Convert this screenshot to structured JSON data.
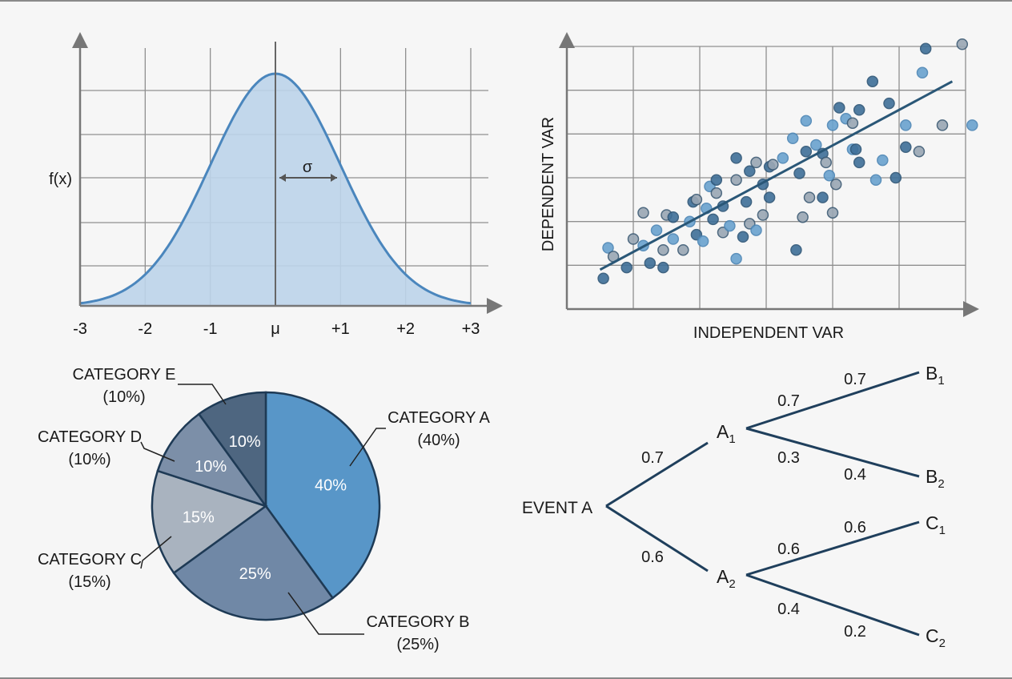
{
  "colors": {
    "grid": "#8f8f8f",
    "axis": "#777777",
    "normal_fill": "#bcd4ea",
    "normal_line": "#4a86bd",
    "trend": "#2a5777",
    "tree": "#1f3f5c",
    "pie_a": "#5896c8",
    "pie_b": "#7088a6",
    "pie_c": "#a9b3bf",
    "pie_d": "#7c8fa8",
    "pie_e": "#4e6680",
    "pie_edge": "#1e3a55"
  },
  "chart_data": [
    {
      "type": "area",
      "name": "normal-distribution",
      "ylabel": "f(x)",
      "xlabel": "",
      "x_ticks": [
        "-3",
        "-2",
        "-1",
        "μ",
        "+1",
        "+2",
        "+3"
      ],
      "xlim": [
        -3,
        3
      ],
      "annotation": "σ",
      "curve": "standard normal density",
      "grid": true
    },
    {
      "type": "scatter",
      "xlabel": "INDEPENDENT VAR",
      "ylabel": "DEPENDENT VAR",
      "xlim": [
        0,
        6
      ],
      "ylim": [
        0,
        6
      ],
      "grid": true,
      "trendline": [
        [
          0.5,
          0.9
        ],
        [
          5.8,
          5.2
        ]
      ],
      "points": [
        [
          0.55,
          0.7,
          0
        ],
        [
          0.62,
          1.4,
          1
        ],
        [
          0.7,
          1.2,
          2
        ],
        [
          0.9,
          0.95,
          0
        ],
        [
          1.0,
          1.6,
          2
        ],
        [
          1.15,
          1.45,
          1
        ],
        [
          1.25,
          1.05,
          0
        ],
        [
          1.15,
          2.2,
          2
        ],
        [
          1.35,
          1.8,
          1
        ],
        [
          1.45,
          0.95,
          0
        ],
        [
          1.45,
          1.35,
          2
        ],
        [
          1.6,
          1.6,
          1
        ],
        [
          1.5,
          2.15,
          2
        ],
        [
          1.6,
          2.1,
          0
        ],
        [
          1.75,
          1.35,
          2
        ],
        [
          1.85,
          2.0,
          1
        ],
        [
          1.9,
          2.45,
          0
        ],
        [
          1.95,
          2.5,
          2
        ],
        [
          1.95,
          1.7,
          0
        ],
        [
          2.05,
          1.55,
          1
        ],
        [
          2.1,
          2.3,
          1
        ],
        [
          2.2,
          2.05,
          0
        ],
        [
          2.15,
          2.8,
          1
        ],
        [
          2.25,
          2.65,
          2
        ],
        [
          2.25,
          2.95,
          0
        ],
        [
          2.35,
          2.35,
          0
        ],
        [
          2.35,
          1.75,
          2
        ],
        [
          2.45,
          1.9,
          1
        ],
        [
          2.55,
          1.15,
          1
        ],
        [
          2.55,
          3.45,
          0
        ],
        [
          2.55,
          2.95,
          2
        ],
        [
          2.65,
          1.65,
          0
        ],
        [
          2.7,
          2.45,
          0
        ],
        [
          2.75,
          3.15,
          0
        ],
        [
          2.75,
          1.95,
          2
        ],
        [
          2.85,
          3.35,
          2
        ],
        [
          2.85,
          1.8,
          1
        ],
        [
          2.95,
          2.85,
          0
        ],
        [
          2.95,
          2.15,
          2
        ],
        [
          3.05,
          3.25,
          0
        ],
        [
          3.05,
          2.55,
          0
        ],
        [
          3.1,
          3.3,
          2
        ],
        [
          3.25,
          3.45,
          1
        ],
        [
          3.45,
          1.35,
          0
        ],
        [
          3.4,
          3.9,
          1
        ],
        [
          3.5,
          3.1,
          0
        ],
        [
          3.55,
          2.1,
          2
        ],
        [
          3.6,
          4.3,
          1
        ],
        [
          3.6,
          3.6,
          0
        ],
        [
          3.65,
          2.55,
          2
        ],
        [
          3.75,
          3.75,
          1
        ],
        [
          3.85,
          2.55,
          0
        ],
        [
          3.85,
          3.55,
          0
        ],
        [
          3.9,
          3.35,
          2
        ],
        [
          3.95,
          3.05,
          1
        ],
        [
          4.0,
          2.2,
          2
        ],
        [
          4.0,
          4.2,
          1
        ],
        [
          4.05,
          2.85,
          2
        ],
        [
          4.1,
          4.6,
          0
        ],
        [
          4.2,
          4.35,
          1
        ],
        [
          4.3,
          3.65,
          1
        ],
        [
          4.35,
          3.65,
          0
        ],
        [
          4.3,
          4.25,
          2
        ],
        [
          4.4,
          3.35,
          0
        ],
        [
          4.4,
          4.55,
          0
        ],
        [
          4.6,
          5.2,
          0
        ],
        [
          4.65,
          2.95,
          1
        ],
        [
          4.75,
          3.4,
          1
        ],
        [
          4.85,
          4.7,
          0
        ],
        [
          4.95,
          3.0,
          0
        ],
        [
          5.1,
          3.7,
          0
        ],
        [
          5.1,
          4.2,
          1
        ],
        [
          5.3,
          3.6,
          2
        ],
        [
          5.35,
          5.4,
          1
        ],
        [
          5.4,
          5.95,
          0
        ],
        [
          5.65,
          4.2,
          2
        ],
        [
          5.95,
          6.05,
          2
        ],
        [
          6.1,
          4.2,
          1
        ]
      ]
    },
    {
      "type": "pie",
      "slices": [
        {
          "label": "CATEGORY A",
          "value": 40,
          "inner": "40%",
          "outer": "(40%)"
        },
        {
          "label": "CATEGORY B",
          "value": 25,
          "inner": "25%",
          "outer": "(25%)"
        },
        {
          "label": "CATEGORY C",
          "value": 15,
          "inner": "15%",
          "outer": "(15%)"
        },
        {
          "label": "CATEGORY D",
          "value": 10,
          "inner": "10%",
          "outer": "(10%)"
        },
        {
          "label": "CATEGORY E",
          "value": 10,
          "inner": "10%",
          "outer": "(10%)"
        }
      ]
    }
  ],
  "tree": {
    "root": "EVENT A",
    "a1": {
      "main": "A",
      "sub": "1"
    },
    "a2": {
      "main": "A",
      "sub": "2"
    },
    "b1": {
      "main": "B",
      "sub": "1"
    },
    "b2": {
      "main": "B",
      "sub": "2"
    },
    "c1": {
      "main": "C",
      "sub": "1"
    },
    "c2": {
      "main": "C",
      "sub": "2"
    },
    "p_root_a1": "0.7",
    "p_root_a2": "0.6",
    "p_a1_upper": "0.7",
    "p_a1_lower": "0.3",
    "p_b1": "0.7",
    "p_b2": "0.4",
    "p_a2_upper": "0.6",
    "p_a2_lower": "0.4",
    "p_c1": "0.6",
    "p_c2": "0.2"
  }
}
